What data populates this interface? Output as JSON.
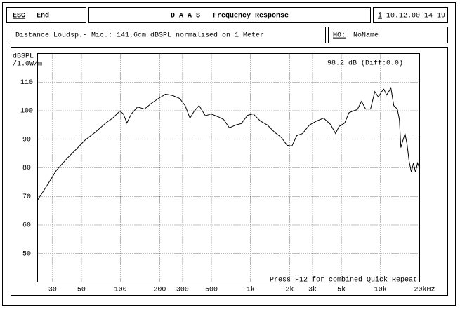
{
  "header": {
    "esc": "ESC",
    "end": "End",
    "title": "D A A S   Frequency Response",
    "info": "i",
    "datetime": "10.12.00 14 19"
  },
  "subheader": {
    "description": "Distance Loudsp.- Mic.: 141.6cm dBSPL normalised on 1 Meter",
    "mo_label": "MO:",
    "mo_value": "NoName"
  },
  "chart_data": {
    "type": "line",
    "color": "#000000",
    "log_x": true,
    "grid": true,
    "ylabel_lines": [
      "dBSPL",
      "/1.0W/m"
    ],
    "annotation": "98.2 dB (Diff:0.0)",
    "footer": "Press F12 for combined Quick Repeat",
    "xlim": [
      23,
      20000
    ],
    "ylim": [
      40,
      120
    ],
    "xticks": [
      30,
      50,
      100,
      200,
      300,
      500,
      {
        "value": 1000,
        "label": "1k"
      },
      {
        "value": 2000,
        "label": "2k"
      },
      {
        "value": 3000,
        "label": "3k"
      },
      {
        "value": 5000,
        "label": "5k"
      },
      {
        "value": 10000,
        "label": "10k"
      },
      {
        "value": 20000,
        "label": "20kHz"
      }
    ],
    "yticks": [
      50,
      60,
      70,
      80,
      90,
      100,
      110
    ],
    "x": [
      23,
      27,
      32,
      39,
      47,
      53,
      64,
      77,
      87,
      99,
      105,
      112,
      121,
      135,
      153,
      173,
      196,
      222,
      252,
      285,
      314,
      342,
      369,
      402,
      450,
      497,
      563,
      622,
      688,
      769,
      850,
      950,
      1050,
      1190,
      1350,
      1530,
      1730,
      1910,
      2080,
      2270,
      2510,
      2840,
      3220,
      3650,
      4130,
      4510,
      4800,
      5300,
      5720,
      6150,
      6630,
      7150,
      7680,
      8380,
      9040,
      9620,
      10230,
      10620,
      11150,
      11590,
      12030,
      12650,
      13470,
      13980,
      14340,
      14880,
      15440,
      16010,
      16610,
      17270,
      17920,
      18580,
      19280,
      20000
    ],
    "values": [
      68.7,
      73.6,
      79,
      83.4,
      87.1,
      89.6,
      92.5,
      95.7,
      97.4,
      99.9,
      98.9,
      95.7,
      98.9,
      101.3,
      100.6,
      102.6,
      104.3,
      105.8,
      105.3,
      104.3,
      101.8,
      97.4,
      99.9,
      101.8,
      98.2,
      98.9,
      97.9,
      96.9,
      94,
      95,
      95.5,
      98.4,
      98.9,
      96.4,
      95,
      92.5,
      90.6,
      87.9,
      87.6,
      91.3,
      92,
      95,
      96.4,
      97.4,
      95.2,
      92,
      94.5,
      95.7,
      99.3,
      99.9,
      100.4,
      103.3,
      100.6,
      100.6,
      106.7,
      104.8,
      106.7,
      107.5,
      105.5,
      106.7,
      108,
      101.8,
      100.6,
      96.9,
      87.1,
      89.6,
      92,
      88.3,
      82.2,
      78.5,
      81.7,
      78.5,
      81.7,
      79.8
    ]
  }
}
